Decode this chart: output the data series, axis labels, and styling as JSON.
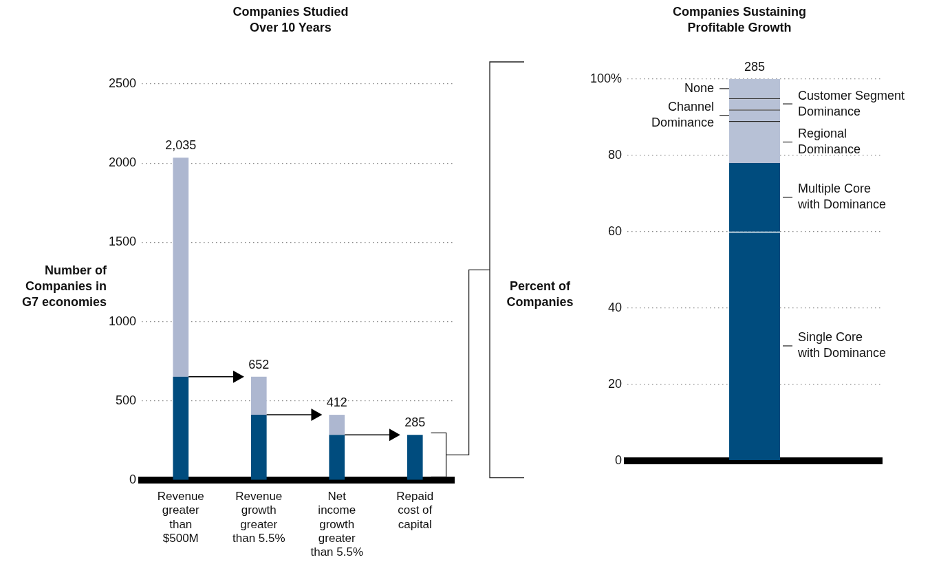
{
  "chart_data": [
    {
      "type": "bar",
      "title": "Companies Studied Over 10 Years",
      "ylabel": "Number of Companies in G7 economies",
      "categories": [
        "Revenue greater than $500M",
        "Revenue growth greater than 5.5%",
        "Net income growth greater than 5.5%",
        "Repaid cost of capital"
      ],
      "stacked": true,
      "series": [
        {
          "color": "#004c7e",
          "values": [
            652,
            412,
            285,
            285
          ]
        },
        {
          "color": "#adb7d0",
          "values": [
            1383,
            240,
            127,
            0
          ]
        }
      ],
      "totals": [
        "2,035",
        "652",
        "412",
        "285"
      ],
      "ylim": [
        0,
        2500
      ],
      "yticks": [
        0,
        500,
        1000,
        1500,
        2000,
        2500
      ],
      "grid": "y"
    },
    {
      "type": "bar",
      "title": "Companies Sustaining Profitable Growth",
      "ylabel": "Percent of Companies",
      "categories": [
        null
      ],
      "stacked": true,
      "series": [
        {
          "name": "Single Core with Dominance",
          "color": "#004c7e",
          "values": [
            60
          ]
        },
        {
          "name": "Multiple Core with Dominance",
          "color": "#004c7e",
          "values": [
            18
          ]
        },
        {
          "name": "Regional Dominance",
          "color": "#b7c1d6",
          "values": [
            11
          ]
        },
        {
          "name": "Channel Dominance",
          "color": "#b7c1d6",
          "values": [
            3
          ]
        },
        {
          "name": "Customer Segment Dominance",
          "color": "#b7c1d6",
          "values": [
            3
          ]
        },
        {
          "name": "None",
          "color": "#b7c1d6",
          "values": [
            5
          ]
        }
      ],
      "annotations": [
        {
          "text": "285",
          "y": 100
        }
      ],
      "ylim": [
        0,
        100
      ],
      "yticks": [
        0,
        20,
        40,
        60,
        80,
        {
          "value": 100,
          "label": "100%"
        }
      ],
      "grid": "y"
    }
  ]
}
